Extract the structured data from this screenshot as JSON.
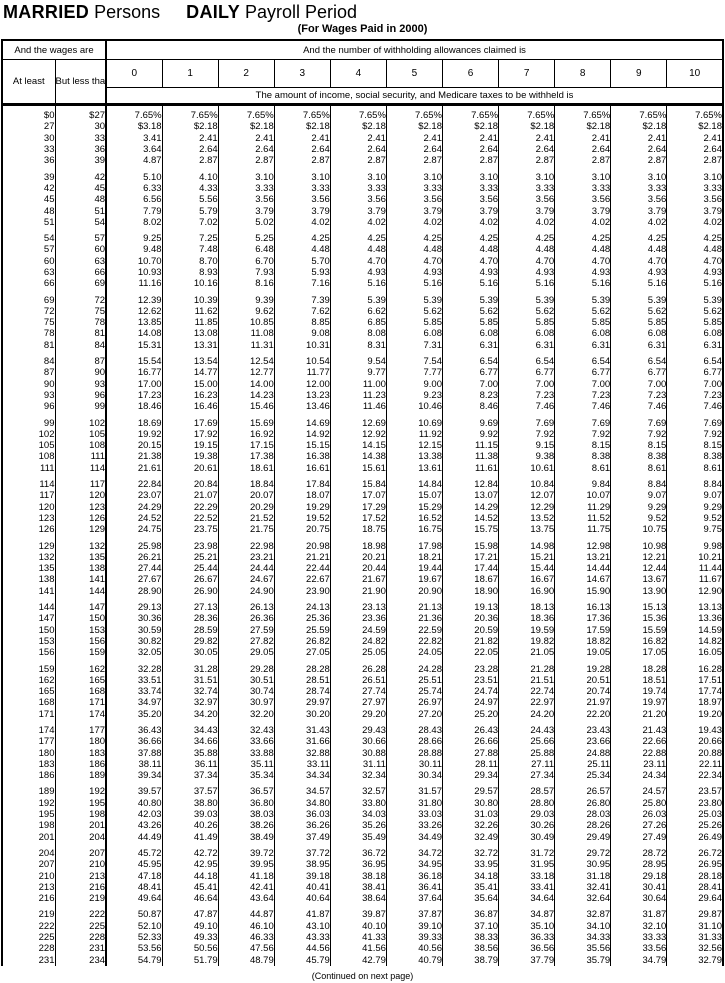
{
  "page": {
    "title_married": "MARRIED",
    "title_persons": " Persons",
    "title_daily": "DAILY",
    "title_payroll": " Payroll Period",
    "subtitle": "(For Wages Paid in 2000)",
    "footer": "(Continued on next page)"
  },
  "table": {
    "wages_header": "And the wages are",
    "allowances_header": "And the number of withholding allowances claimed is",
    "col_at_least": "At least",
    "col_but_less": "But less than",
    "allowance_labels": [
      "0",
      "1",
      "2",
      "3",
      "4",
      "5",
      "6",
      "7",
      "8",
      "9",
      "10"
    ],
    "amount_header": "The amount of income, social security, and Medicare taxes to be withheld is",
    "blocks": [
      [
        [
          "$0",
          "$27",
          "7.65%",
          "7.65%",
          "7.65%",
          "7.65%",
          "7.65%",
          "7.65%",
          "7.65%",
          "7.65%",
          "7.65%",
          "7.65%",
          "7.65%"
        ],
        [
          "27",
          "30",
          "$3.18",
          "$2.18",
          "$2.18",
          "$2.18",
          "$2.18",
          "$2.18",
          "$2.18",
          "$2.18",
          "$2.18",
          "$2.18",
          "$2.18"
        ],
        [
          "30",
          "33",
          "3.41",
          "2.41",
          "2.41",
          "2.41",
          "2.41",
          "2.41",
          "2.41",
          "2.41",
          "2.41",
          "2.41",
          "2.41"
        ],
        [
          "33",
          "36",
          "3.64",
          "2.64",
          "2.64",
          "2.64",
          "2.64",
          "2.64",
          "2.64",
          "2.64",
          "2.64",
          "2.64",
          "2.64"
        ],
        [
          "36",
          "39",
          "4.87",
          "2.87",
          "2.87",
          "2.87",
          "2.87",
          "2.87",
          "2.87",
          "2.87",
          "2.87",
          "2.87",
          "2.87"
        ]
      ],
      [
        [
          "39",
          "42",
          "5.10",
          "4.10",
          "3.10",
          "3.10",
          "3.10",
          "3.10",
          "3.10",
          "3.10",
          "3.10",
          "3.10",
          "3.10"
        ],
        [
          "42",
          "45",
          "6.33",
          "4.33",
          "3.33",
          "3.33",
          "3.33",
          "3.33",
          "3.33",
          "3.33",
          "3.33",
          "3.33",
          "3.33"
        ],
        [
          "45",
          "48",
          "6.56",
          "5.56",
          "3.56",
          "3.56",
          "3.56",
          "3.56",
          "3.56",
          "3.56",
          "3.56",
          "3.56",
          "3.56"
        ],
        [
          "48",
          "51",
          "7.79",
          "5.79",
          "3.79",
          "3.79",
          "3.79",
          "3.79",
          "3.79",
          "3.79",
          "3.79",
          "3.79",
          "3.79"
        ],
        [
          "51",
          "54",
          "8.02",
          "7.02",
          "5.02",
          "4.02",
          "4.02",
          "4.02",
          "4.02",
          "4.02",
          "4.02",
          "4.02",
          "4.02"
        ]
      ],
      [
        [
          "54",
          "57",
          "9.25",
          "7.25",
          "5.25",
          "4.25",
          "4.25",
          "4.25",
          "4.25",
          "4.25",
          "4.25",
          "4.25",
          "4.25"
        ],
        [
          "57",
          "60",
          "9.48",
          "7.48",
          "6.48",
          "4.48",
          "4.48",
          "4.48",
          "4.48",
          "4.48",
          "4.48",
          "4.48",
          "4.48"
        ],
        [
          "60",
          "63",
          "10.70",
          "8.70",
          "6.70",
          "5.70",
          "4.70",
          "4.70",
          "4.70",
          "4.70",
          "4.70",
          "4.70",
          "4.70"
        ],
        [
          "63",
          "66",
          "10.93",
          "8.93",
          "7.93",
          "5.93",
          "4.93",
          "4.93",
          "4.93",
          "4.93",
          "4.93",
          "4.93",
          "4.93"
        ],
        [
          "66",
          "69",
          "11.16",
          "10.16",
          "8.16",
          "7.16",
          "5.16",
          "5.16",
          "5.16",
          "5.16",
          "5.16",
          "5.16",
          "5.16"
        ]
      ],
      [
        [
          "69",
          "72",
          "12.39",
          "10.39",
          "9.39",
          "7.39",
          "5.39",
          "5.39",
          "5.39",
          "5.39",
          "5.39",
          "5.39",
          "5.39"
        ],
        [
          "72",
          "75",
          "12.62",
          "11.62",
          "9.62",
          "7.62",
          "6.62",
          "5.62",
          "5.62",
          "5.62",
          "5.62",
          "5.62",
          "5.62"
        ],
        [
          "75",
          "78",
          "13.85",
          "11.85",
          "10.85",
          "8.85",
          "6.85",
          "5.85",
          "5.85",
          "5.85",
          "5.85",
          "5.85",
          "5.85"
        ],
        [
          "78",
          "81",
          "14.08",
          "13.08",
          "11.08",
          "9.08",
          "8.08",
          "6.08",
          "6.08",
          "6.08",
          "6.08",
          "6.08",
          "6.08"
        ],
        [
          "81",
          "84",
          "15.31",
          "13.31",
          "11.31",
          "10.31",
          "8.31",
          "7.31",
          "6.31",
          "6.31",
          "6.31",
          "6.31",
          "6.31"
        ]
      ],
      [
        [
          "84",
          "87",
          "15.54",
          "13.54",
          "12.54",
          "10.54",
          "9.54",
          "7.54",
          "6.54",
          "6.54",
          "6.54",
          "6.54",
          "6.54"
        ],
        [
          "87",
          "90",
          "16.77",
          "14.77",
          "12.77",
          "11.77",
          "9.77",
          "7.77",
          "6.77",
          "6.77",
          "6.77",
          "6.77",
          "6.77"
        ],
        [
          "90",
          "93",
          "17.00",
          "15.00",
          "14.00",
          "12.00",
          "11.00",
          "9.00",
          "7.00",
          "7.00",
          "7.00",
          "7.00",
          "7.00"
        ],
        [
          "93",
          "96",
          "17.23",
          "16.23",
          "14.23",
          "13.23",
          "11.23",
          "9.23",
          "8.23",
          "7.23",
          "7.23",
          "7.23",
          "7.23"
        ],
        [
          "96",
          "99",
          "18.46",
          "16.46",
          "15.46",
          "13.46",
          "11.46",
          "10.46",
          "8.46",
          "7.46",
          "7.46",
          "7.46",
          "7.46"
        ]
      ],
      [
        [
          "99",
          "102",
          "18.69",
          "17.69",
          "15.69",
          "14.69",
          "12.69",
          "10.69",
          "9.69",
          "7.69",
          "7.69",
          "7.69",
          "7.69"
        ],
        [
          "102",
          "105",
          "19.92",
          "17.92",
          "16.92",
          "14.92",
          "12.92",
          "11.92",
          "9.92",
          "7.92",
          "7.92",
          "7.92",
          "7.92"
        ],
        [
          "105",
          "108",
          "20.15",
          "19.15",
          "17.15",
          "15.15",
          "14.15",
          "12.15",
          "11.15",
          "9.15",
          "8.15",
          "8.15",
          "8.15"
        ],
        [
          "108",
          "111",
          "21.38",
          "19.38",
          "17.38",
          "16.38",
          "14.38",
          "13.38",
          "11.38",
          "9.38",
          "8.38",
          "8.38",
          "8.38"
        ],
        [
          "111",
          "114",
          "21.61",
          "20.61",
          "18.61",
          "16.61",
          "15.61",
          "13.61",
          "11.61",
          "10.61",
          "8.61",
          "8.61",
          "8.61"
        ]
      ],
      [
        [
          "114",
          "117",
          "22.84",
          "20.84",
          "18.84",
          "17.84",
          "15.84",
          "14.84",
          "12.84",
          "10.84",
          "9.84",
          "8.84",
          "8.84"
        ],
        [
          "117",
          "120",
          "23.07",
          "21.07",
          "20.07",
          "18.07",
          "17.07",
          "15.07",
          "13.07",
          "12.07",
          "10.07",
          "9.07",
          "9.07"
        ],
        [
          "120",
          "123",
          "24.29",
          "22.29",
          "20.29",
          "19.29",
          "17.29",
          "15.29",
          "14.29",
          "12.29",
          "11.29",
          "9.29",
          "9.29"
        ],
        [
          "123",
          "126",
          "24.52",
          "22.52",
          "21.52",
          "19.52",
          "17.52",
          "16.52",
          "14.52",
          "13.52",
          "11.52",
          "9.52",
          "9.52"
        ],
        [
          "126",
          "129",
          "24.75",
          "23.75",
          "21.75",
          "20.75",
          "18.75",
          "16.75",
          "15.75",
          "13.75",
          "11.75",
          "10.75",
          "9.75"
        ]
      ],
      [
        [
          "129",
          "132",
          "25.98",
          "23.98",
          "22.98",
          "20.98",
          "18.98",
          "17.98",
          "15.98",
          "14.98",
          "12.98",
          "10.98",
          "9.98"
        ],
        [
          "132",
          "135",
          "26.21",
          "25.21",
          "23.21",
          "21.21",
          "20.21",
          "18.21",
          "17.21",
          "15.21",
          "13.21",
          "12.21",
          "10.21"
        ],
        [
          "135",
          "138",
          "27.44",
          "25.44",
          "24.44",
          "22.44",
          "20.44",
          "19.44",
          "17.44",
          "15.44",
          "14.44",
          "12.44",
          "11.44"
        ],
        [
          "138",
          "141",
          "27.67",
          "26.67",
          "24.67",
          "22.67",
          "21.67",
          "19.67",
          "18.67",
          "16.67",
          "14.67",
          "13.67",
          "11.67"
        ],
        [
          "141",
          "144",
          "28.90",
          "26.90",
          "24.90",
          "23.90",
          "21.90",
          "20.90",
          "18.90",
          "16.90",
          "15.90",
          "13.90",
          "12.90"
        ]
      ],
      [
        [
          "144",
          "147",
          "29.13",
          "27.13",
          "26.13",
          "24.13",
          "23.13",
          "21.13",
          "19.13",
          "18.13",
          "16.13",
          "15.13",
          "13.13"
        ],
        [
          "147",
          "150",
          "30.36",
          "28.36",
          "26.36",
          "25.36",
          "23.36",
          "21.36",
          "20.36",
          "18.36",
          "17.36",
          "15.36",
          "13.36"
        ],
        [
          "150",
          "153",
          "30.59",
          "28.59",
          "27.59",
          "25.59",
          "24.59",
          "22.59",
          "20.59",
          "19.59",
          "17.59",
          "15.59",
          "14.59"
        ],
        [
          "153",
          "156",
          "30.82",
          "29.82",
          "27.82",
          "26.82",
          "24.82",
          "22.82",
          "21.82",
          "19.82",
          "18.82",
          "16.82",
          "14.82"
        ],
        [
          "156",
          "159",
          "32.05",
          "30.05",
          "29.05",
          "27.05",
          "25.05",
          "24.05",
          "22.05",
          "21.05",
          "19.05",
          "17.05",
          "16.05"
        ]
      ],
      [
        [
          "159",
          "162",
          "32.28",
          "31.28",
          "29.28",
          "28.28",
          "26.28",
          "24.28",
          "23.28",
          "21.28",
          "19.28",
          "18.28",
          "16.28"
        ],
        [
          "162",
          "165",
          "33.51",
          "31.51",
          "30.51",
          "28.51",
          "26.51",
          "25.51",
          "23.51",
          "21.51",
          "20.51",
          "18.51",
          "17.51"
        ],
        [
          "165",
          "168",
          "33.74",
          "32.74",
          "30.74",
          "28.74",
          "27.74",
          "25.74",
          "24.74",
          "22.74",
          "20.74",
          "19.74",
          "17.74"
        ],
        [
          "168",
          "171",
          "34.97",
          "32.97",
          "30.97",
          "29.97",
          "27.97",
          "26.97",
          "24.97",
          "22.97",
          "21.97",
          "19.97",
          "18.97"
        ],
        [
          "171",
          "174",
          "35.20",
          "34.20",
          "32.20",
          "30.20",
          "29.20",
          "27.20",
          "25.20",
          "24.20",
          "22.20",
          "21.20",
          "19.20"
        ]
      ],
      [
        [
          "174",
          "177",
          "36.43",
          "34.43",
          "32.43",
          "31.43",
          "29.43",
          "28.43",
          "26.43",
          "24.43",
          "23.43",
          "21.43",
          "19.43"
        ],
        [
          "177",
          "180",
          "36.66",
          "34.66",
          "33.66",
          "31.66",
          "30.66",
          "28.66",
          "26.66",
          "25.66",
          "23.66",
          "22.66",
          "20.66"
        ],
        [
          "180",
          "183",
          "37.88",
          "35.88",
          "33.88",
          "32.88",
          "30.88",
          "28.88",
          "27.88",
          "25.88",
          "24.88",
          "22.88",
          "20.88"
        ],
        [
          "183",
          "186",
          "38.11",
          "36.11",
          "35.11",
          "33.11",
          "31.11",
          "30.11",
          "28.11",
          "27.11",
          "25.11",
          "23.11",
          "22.11"
        ],
        [
          "186",
          "189",
          "39.34",
          "37.34",
          "35.34",
          "34.34",
          "32.34",
          "30.34",
          "29.34",
          "27.34",
          "25.34",
          "24.34",
          "22.34"
        ]
      ],
      [
        [
          "189",
          "192",
          "39.57",
          "37.57",
          "36.57",
          "34.57",
          "32.57",
          "31.57",
          "29.57",
          "28.57",
          "26.57",
          "24.57",
          "23.57"
        ],
        [
          "192",
          "195",
          "40.80",
          "38.80",
          "36.80",
          "34.80",
          "33.80",
          "31.80",
          "30.80",
          "28.80",
          "26.80",
          "25.80",
          "23.80"
        ],
        [
          "195",
          "198",
          "42.03",
          "39.03",
          "38.03",
          "36.03",
          "34.03",
          "33.03",
          "31.03",
          "29.03",
          "28.03",
          "26.03",
          "25.03"
        ],
        [
          "198",
          "201",
          "43.26",
          "40.26",
          "38.26",
          "36.26",
          "35.26",
          "33.26",
          "32.26",
          "30.26",
          "28.26",
          "27.26",
          "25.26"
        ],
        [
          "201",
          "204",
          "44.49",
          "41.49",
          "38.49",
          "37.49",
          "35.49",
          "34.49",
          "32.49",
          "30.49",
          "29.49",
          "27.49",
          "26.49"
        ]
      ],
      [
        [
          "204",
          "207",
          "45.72",
          "42.72",
          "39.72",
          "37.72",
          "36.72",
          "34.72",
          "32.72",
          "31.72",
          "29.72",
          "28.72",
          "26.72"
        ],
        [
          "207",
          "210",
          "45.95",
          "42.95",
          "39.95",
          "38.95",
          "36.95",
          "34.95",
          "33.95",
          "31.95",
          "30.95",
          "28.95",
          "26.95"
        ],
        [
          "210",
          "213",
          "47.18",
          "44.18",
          "41.18",
          "39.18",
          "38.18",
          "36.18",
          "34.18",
          "33.18",
          "31.18",
          "29.18",
          "28.18"
        ],
        [
          "213",
          "216",
          "48.41",
          "45.41",
          "42.41",
          "40.41",
          "38.41",
          "36.41",
          "35.41",
          "33.41",
          "32.41",
          "30.41",
          "28.41"
        ],
        [
          "216",
          "219",
          "49.64",
          "46.64",
          "43.64",
          "40.64",
          "38.64",
          "37.64",
          "35.64",
          "34.64",
          "32.64",
          "30.64",
          "29.64"
        ]
      ],
      [
        [
          "219",
          "222",
          "50.87",
          "47.87",
          "44.87",
          "41.87",
          "39.87",
          "37.87",
          "36.87",
          "34.87",
          "32.87",
          "31.87",
          "29.87"
        ],
        [
          "222",
          "225",
          "52.10",
          "49.10",
          "46.10",
          "43.10",
          "40.10",
          "39.10",
          "37.10",
          "35.10",
          "34.10",
          "32.10",
          "31.10"
        ],
        [
          "225",
          "228",
          "52.33",
          "49.33",
          "46.33",
          "43.33",
          "41.33",
          "39.33",
          "38.33",
          "36.33",
          "34.33",
          "33.33",
          "31.33"
        ],
        [
          "228",
          "231",
          "53.56",
          "50.56",
          "47.56",
          "44.56",
          "41.56",
          "40.56",
          "38.56",
          "36.56",
          "35.56",
          "33.56",
          "32.56"
        ],
        [
          "231",
          "234",
          "54.79",
          "51.79",
          "48.79",
          "45.79",
          "42.79",
          "40.79",
          "38.79",
          "37.79",
          "35.79",
          "34.79",
          "32.79"
        ]
      ]
    ]
  }
}
